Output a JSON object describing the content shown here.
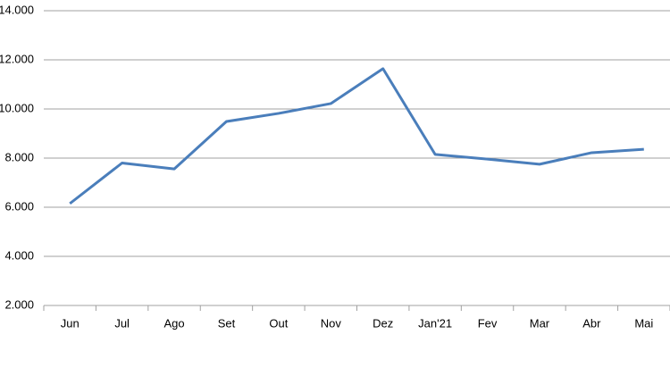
{
  "chart_data": {
    "type": "line",
    "categories": [
      "Jun",
      "Jul",
      "Ago",
      "Set",
      "Out",
      "Nov",
      "Dez",
      "Jan'21",
      "Fev",
      "Mar",
      "Abr",
      "Mai"
    ],
    "series": [
      {
        "color": "#4a7ebb",
        "values": [
          6150,
          7800,
          7560,
          9490,
          9820,
          10220,
          11640,
          8150,
          7960,
          7750,
          8220,
          8360
        ]
      }
    ],
    "ylim": [
      2000,
      14000
    ],
    "yticks": [
      {
        "value": 2000,
        "label": "2.000"
      },
      {
        "value": 4000,
        "label": "4.000"
      },
      {
        "value": 6000,
        "label": "6.000"
      },
      {
        "value": 8000,
        "label": "8.000"
      },
      {
        "value": 10000,
        "label": "10.000"
      },
      {
        "value": 12000,
        "label": "12.000"
      },
      {
        "value": 14000,
        "label": "14.000"
      }
    ],
    "grid": true
  }
}
